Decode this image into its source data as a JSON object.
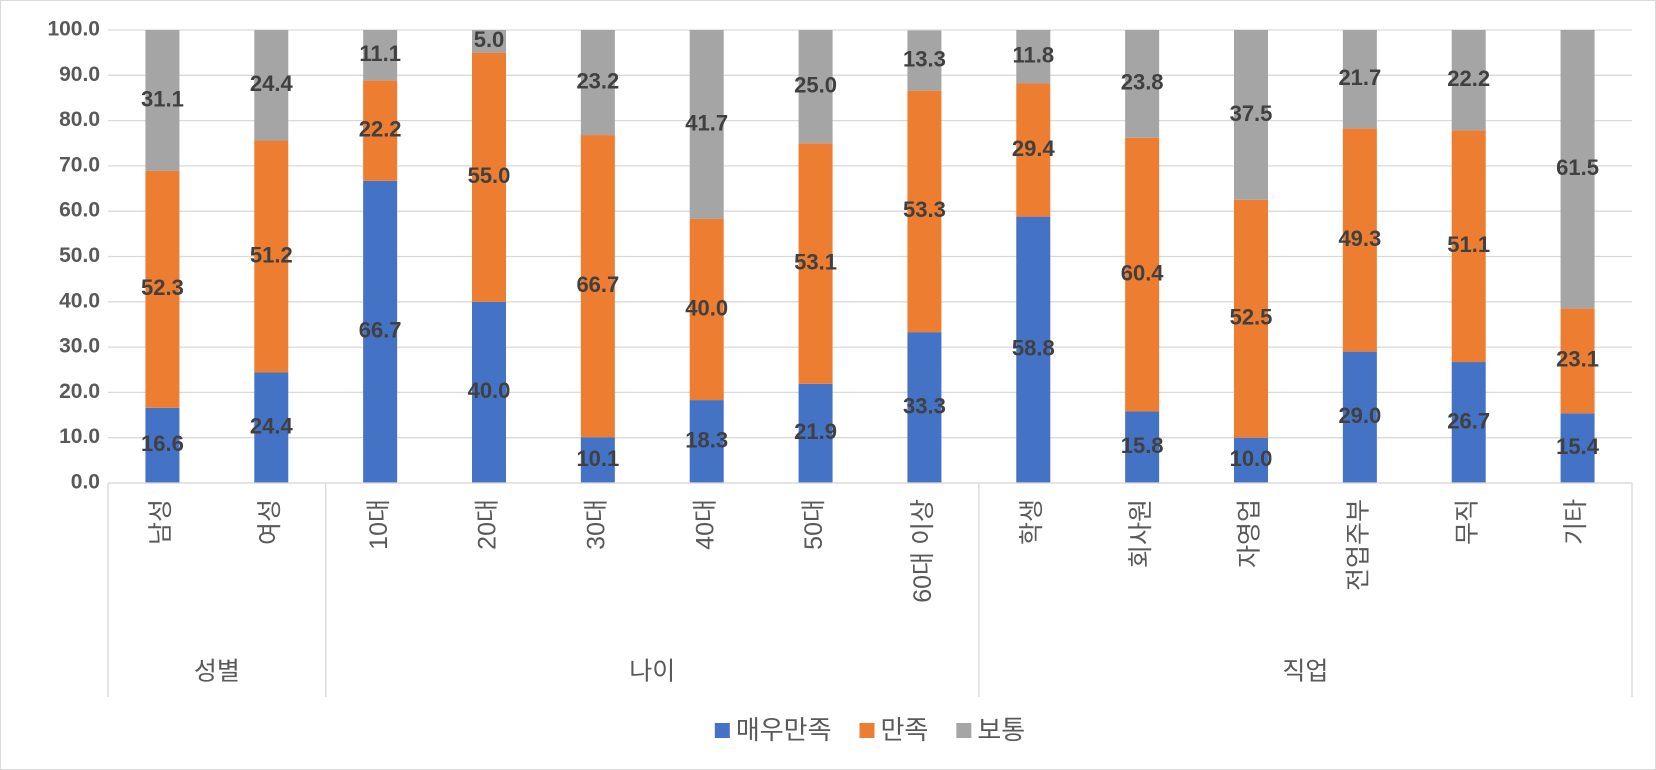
{
  "chart_data": {
    "type": "stacked-bar",
    "groups": [
      {
        "name": "성별",
        "categories": [
          "남성",
          "여성"
        ]
      },
      {
        "name": "나이",
        "categories": [
          "10대",
          "20대",
          "30대",
          "40대",
          "50대",
          "60대 이상"
        ]
      },
      {
        "name": "직업",
        "categories": [
          "학생",
          "회사원",
          "자영업",
          "전업주부",
          "무직",
          "기타"
        ]
      }
    ],
    "series": [
      {
        "name": "매우만족",
        "color": "#4472c4",
        "values": [
          16.6,
          24.4,
          66.7,
          40,
          10.1,
          18.3,
          21.9,
          33.3,
          58.8,
          15.8,
          10,
          29,
          26.7,
          15.4
        ],
        "value_labels": [
          "16.6",
          "24.4",
          "66.7",
          "40.0",
          "10.1",
          "18.3",
          "21.9",
          "33.3",
          "58.8",
          "15.8",
          "10.0",
          "29.0",
          "26.7",
          "15.4"
        ]
      },
      {
        "name": "만족",
        "color": "#ed7d31",
        "values": [
          52.3,
          51.2,
          22.2,
          55,
          66.7,
          40,
          53.1,
          53.3,
          29.4,
          60.4,
          52.5,
          49.3,
          51.1,
          23.1
        ],
        "value_labels": [
          "52.3",
          "51.2",
          "22.2",
          "55.0",
          "66.7",
          "40.0",
          "53.1",
          "53.3",
          "29.4",
          "60.4",
          "52.5",
          "49.3",
          "51.1",
          "23.1"
        ]
      },
      {
        "name": "보통",
        "color": "#a5a5a5",
        "values": [
          31.1,
          24.4,
          11.1,
          5,
          23.2,
          41.7,
          25,
          13.3,
          11.8,
          23.8,
          37.5,
          21.7,
          22.2,
          61.5
        ],
        "value_labels": [
          "31.1",
          "24.4",
          "11.1",
          "5.0",
          "23.2",
          "41.7",
          "25.0",
          "13.3",
          "11.8",
          "23.8",
          "37.5",
          "21.7",
          "22.2",
          "61.5"
        ]
      }
    ],
    "ylim": [
      0,
      100
    ],
    "yticks": [
      {
        "value": 0,
        "label": "0.0"
      },
      {
        "value": 10,
        "label": "10.0"
      },
      {
        "value": 20,
        "label": "20.0"
      },
      {
        "value": 30,
        "label": "30.0"
      },
      {
        "value": 40,
        "label": "40.0"
      },
      {
        "value": 50,
        "label": "50.0"
      },
      {
        "value": 60,
        "label": "60.0"
      },
      {
        "value": 70,
        "label": "70.0"
      },
      {
        "value": 80,
        "label": "80.0"
      },
      {
        "value": 90,
        "label": "90.0"
      },
      {
        "value": 100,
        "label": "100.0"
      }
    ],
    "grid": true,
    "legend": "bottom"
  }
}
